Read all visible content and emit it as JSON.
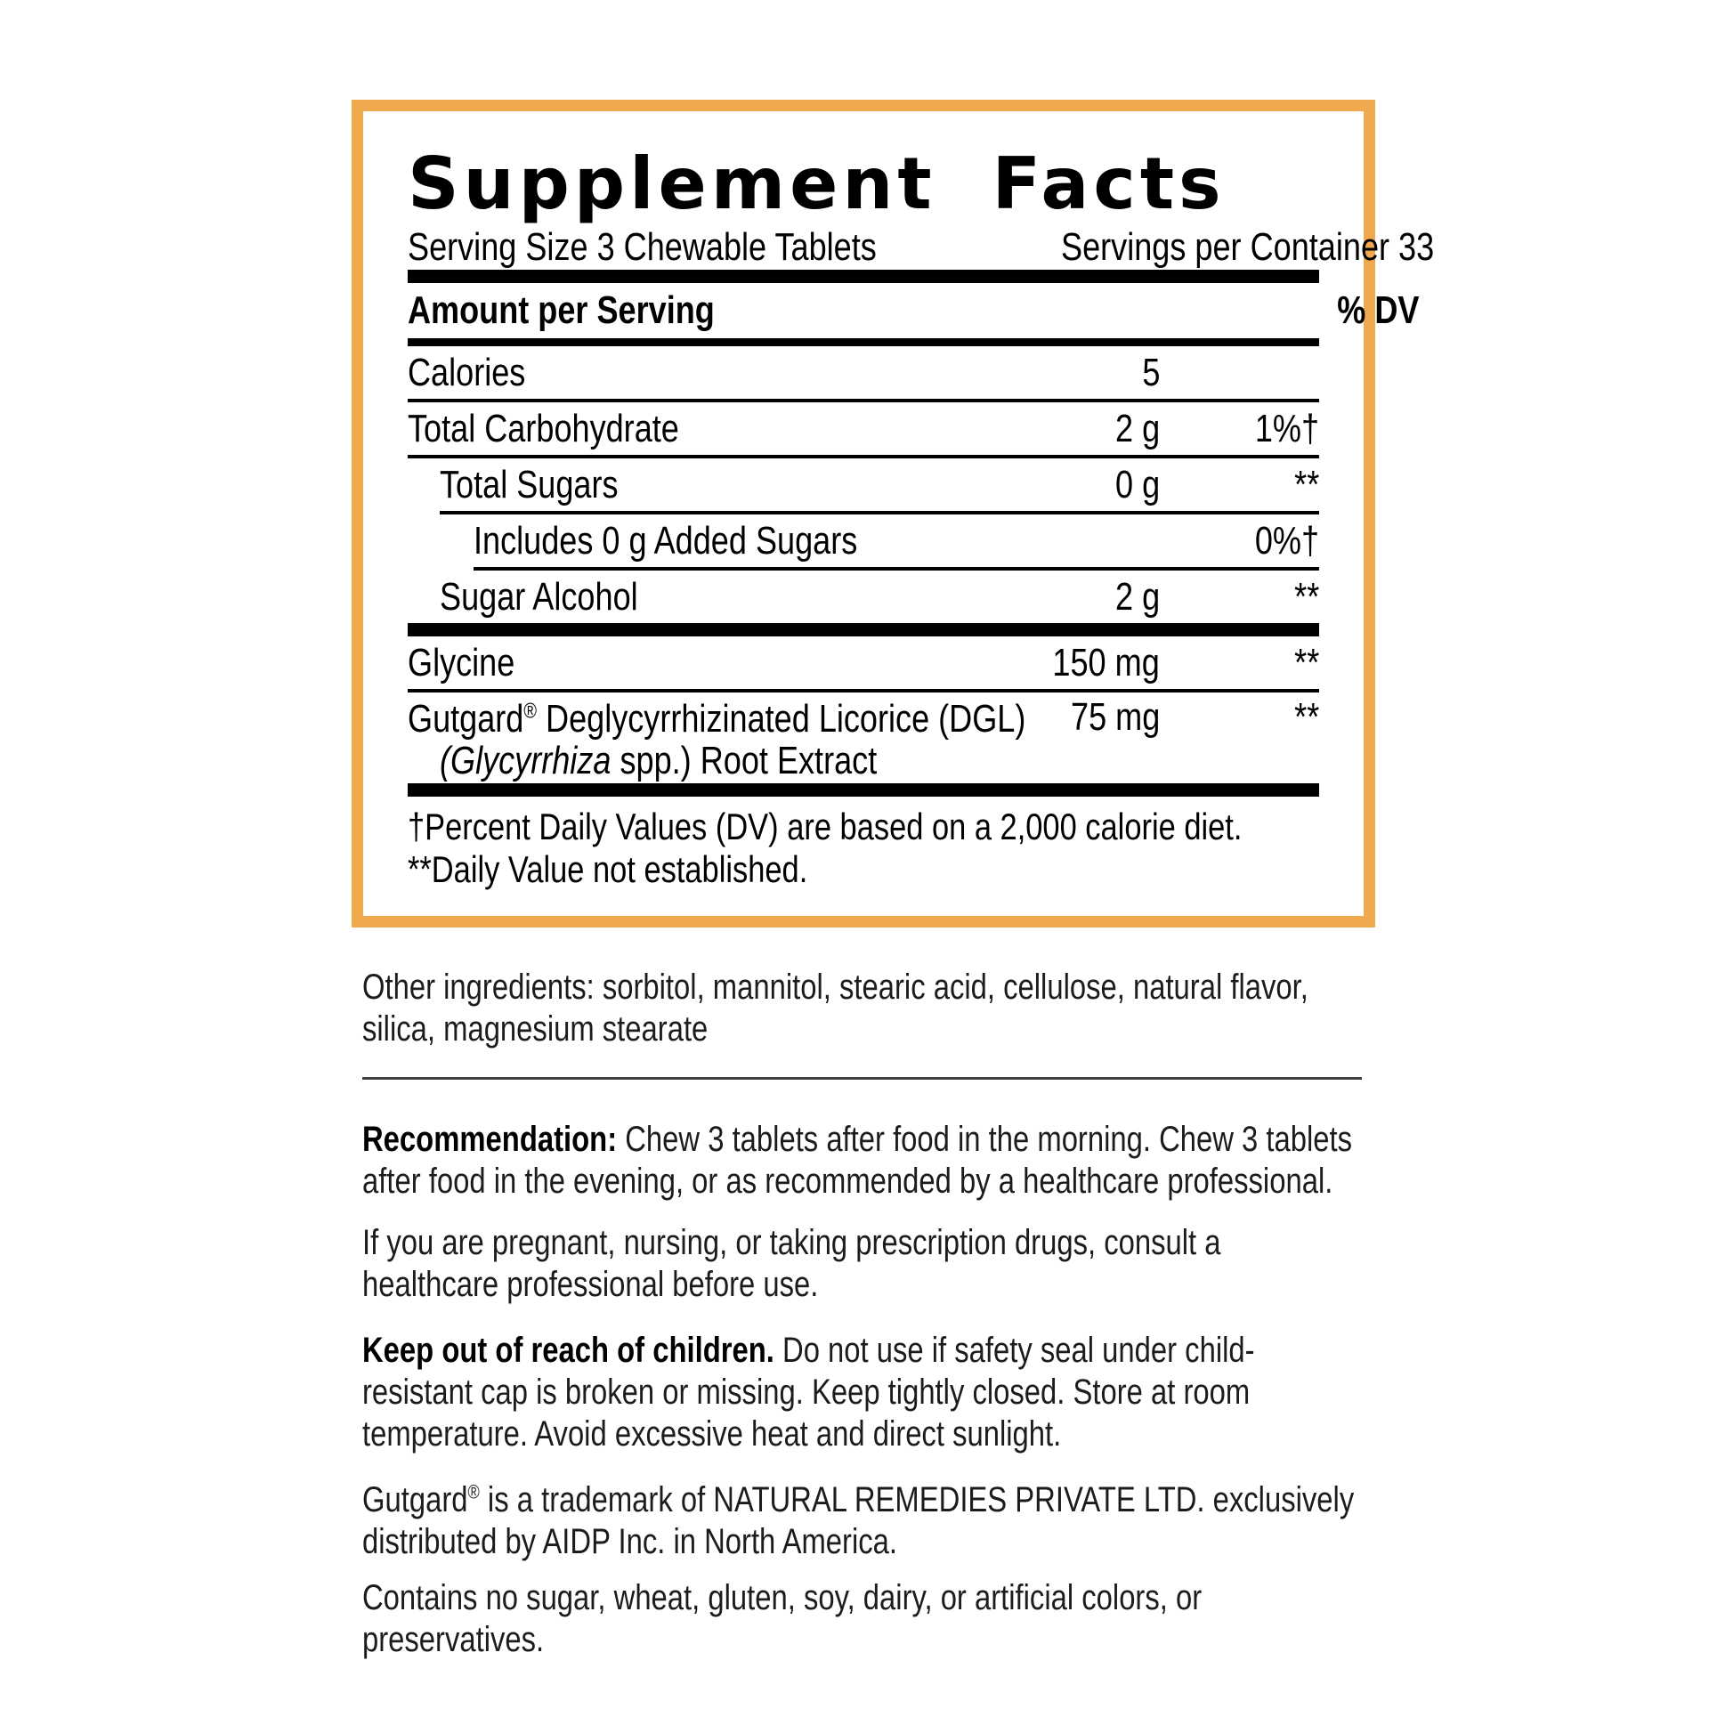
{
  "supplement_facts": {
    "border_color": "#F1A94E",
    "title": "Supplement Facts",
    "serving_size": "Serving Size 3 Chewable Tablets",
    "servings_per_container": "Servings per Container 33",
    "column_headers": {
      "amount": "Amount per Serving",
      "daily_value": "% DV"
    },
    "rows": [
      {
        "name": "Calories",
        "amount": "5",
        "dv": ""
      },
      {
        "name": "Total Carbohydrate",
        "amount": "2 g",
        "dv": "1%†"
      },
      {
        "name": "Total Sugars",
        "amount": "0 g",
        "dv": "**"
      },
      {
        "name": "Includes 0 g Added Sugars",
        "amount": "",
        "dv": "0%†"
      },
      {
        "name": "Sugar Alcohol",
        "amount": "2 g",
        "dv": "**"
      },
      {
        "name": "Glycine",
        "amount": "150 mg",
        "dv": "**"
      },
      {
        "name_brand": "Gutgard",
        "name_reg": "®",
        "name_rest": " Deglycyrrhizinated Licorice (DGL)",
        "name_line2_italic": "(Glycyrrhiza",
        "name_line2_rest": " spp.) Root Extract",
        "amount": "75 mg",
        "dv": "**"
      }
    ],
    "footnote_dagger": "†Percent Daily Values (DV) are based on a 2,000 calorie diet.",
    "footnote_asterisks": "**Daily Value not established."
  },
  "details": {
    "other_ingredients": "Other ingredients: sorbitol, mannitol, stearic acid, cellulose, natural flavor, silica, magnesium stearate",
    "recommendation_label": "Recommendation:",
    "recommendation_text": " Chew 3 tablets after food in the morning. Chew 3 tablets after food in the evening, or as recommended by a healthcare professional.",
    "pregnancy_notice": "If you are pregnant, nursing, or taking prescription drugs, consult a healthcare professional before use.",
    "children_warning_label": "Keep out of reach of children.",
    "children_warning_text": " Do not use if safety seal under child-resistant cap is broken or missing. Keep tightly closed. Store at room temperature. Avoid excessive heat and direct sunlight.",
    "trademark_brand": "Gutgard",
    "trademark_reg": "®",
    "trademark_text": " is a trademark of NATURAL REMEDIES PRIVATE LTD. exclusively distributed by AIDP Inc. in North America.",
    "allergen_statement": "Contains no sugar, wheat, gluten, soy, dairy, or artificial colors, or preservatives."
  }
}
